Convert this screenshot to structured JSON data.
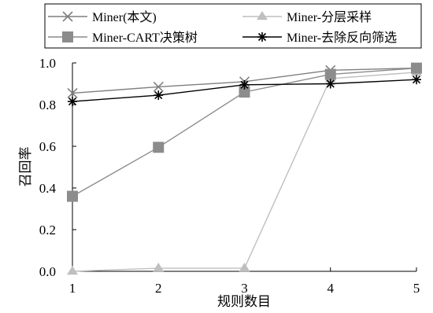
{
  "chart_data": {
    "type": "line",
    "xlabel": "规则数目",
    "ylabel": "召回率",
    "x": [
      1,
      2,
      3,
      4,
      5
    ],
    "xlim": [
      1,
      5
    ],
    "ylim": [
      0,
      1.0
    ],
    "yticks": [
      "0.0",
      "0.2",
      "0.4",
      "0.6",
      "0.8",
      "1.0"
    ],
    "xticks": [
      "1",
      "2",
      "3",
      "4",
      "5"
    ],
    "grid": false,
    "legend_position": "top",
    "series": [
      {
        "name": "Miner(本文)",
        "marker": "x",
        "color": "#7f7f7f",
        "values": [
          0.855,
          0.885,
          0.91,
          0.965,
          0.975
        ]
      },
      {
        "name": "Miner-分层采样",
        "marker": "triangle",
        "color": "#bfbfbf",
        "values": [
          0.0,
          0.015,
          0.015,
          0.925,
          0.955
        ]
      },
      {
        "name": "Miner-CART决策树",
        "marker": "square",
        "color": "#8c8c8c",
        "values": [
          0.36,
          0.595,
          0.86,
          0.945,
          0.975
        ]
      },
      {
        "name": "Miner-去除反向筛选",
        "marker": "star",
        "color": "#000000",
        "values": [
          0.815,
          0.845,
          0.895,
          0.9,
          0.92
        ]
      }
    ]
  }
}
